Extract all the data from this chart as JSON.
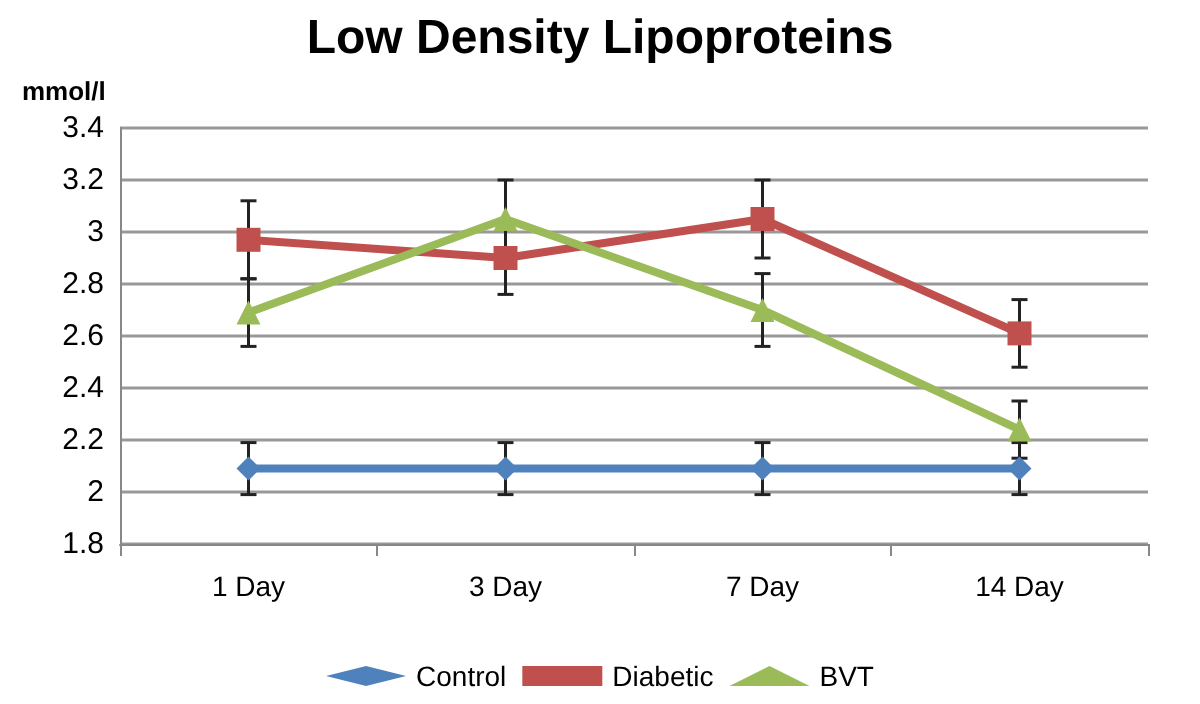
{
  "chart_data": {
    "type": "line",
    "title": "Low Density Lipoproteins",
    "ylabel": "mmol/l",
    "categories": [
      "1 Day",
      "3 Day",
      "7 Day",
      "14 Day"
    ],
    "series": [
      {
        "name": "Control",
        "color": "#4f81bd",
        "marker": "diamond",
        "values": [
          2.09,
          2.09,
          2.09,
          2.09
        ],
        "errors": [
          0.1,
          0.1,
          0.1,
          0.1
        ]
      },
      {
        "name": "Diabetic",
        "color": "#c0504d",
        "marker": "square",
        "values": [
          2.97,
          2.9,
          3.05,
          2.61
        ],
        "errors": [
          0.15,
          0.14,
          0.15,
          0.13
        ]
      },
      {
        "name": "BVT",
        "color": "#9bbb59",
        "marker": "triangle",
        "values": [
          2.69,
          3.05,
          2.7,
          2.24
        ],
        "errors": [
          0.13,
          0.15,
          0.14,
          0.11
        ]
      }
    ],
    "ylim": [
      1.8,
      3.4
    ],
    "yticks": [
      1.8,
      2,
      2.2,
      2.4,
      2.6,
      2.8,
      3,
      3.2,
      3.4
    ],
    "grid": "y",
    "legend": "bottom",
    "line_style": "solid"
  }
}
